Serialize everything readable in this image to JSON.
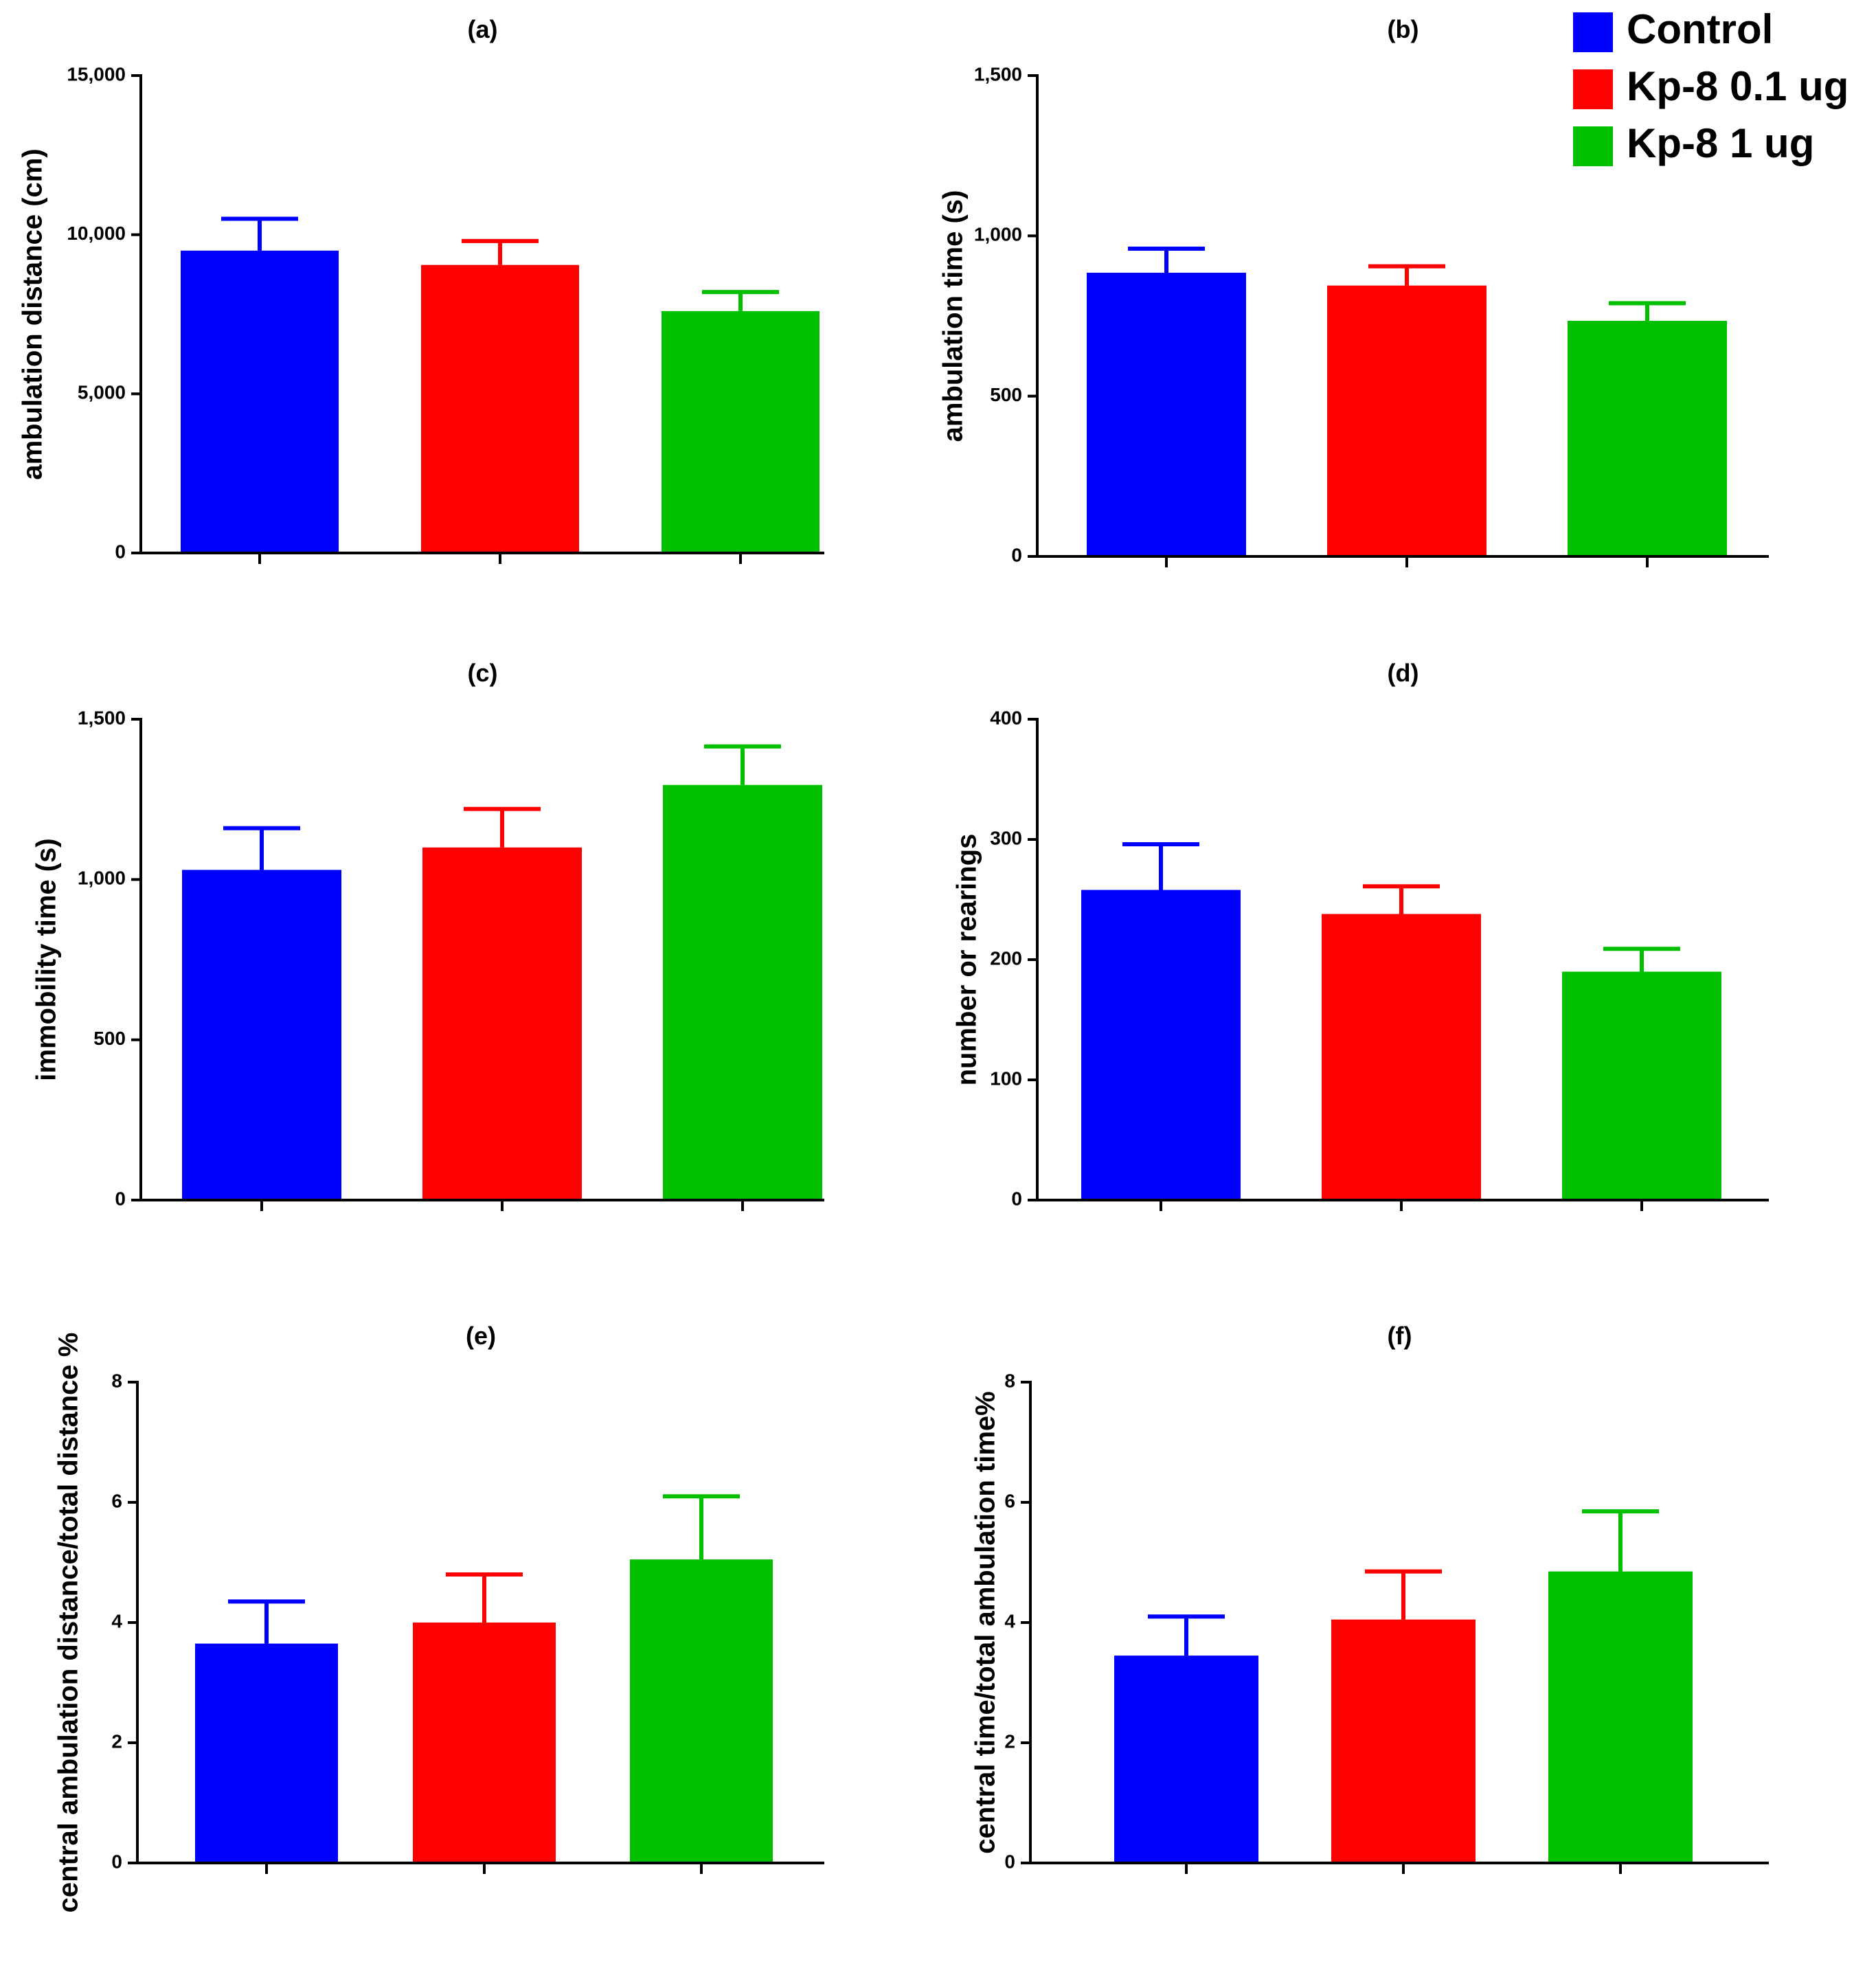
{
  "legend": {
    "items": [
      {
        "name": "Control",
        "color": "#0000ff"
      },
      {
        "name": "Kp-8 0.1 ug",
        "color": "#ff0000"
      },
      {
        "name": "Kp-8 1 ug",
        "color": "#00c000"
      }
    ]
  },
  "chart_data": [
    {
      "id": "a",
      "type": "bar",
      "title": "(a)",
      "ylabel": "ambulation distance (cm)",
      "ylim": [
        0,
        15000
      ],
      "yticks": [
        0,
        5000,
        10000,
        15000
      ],
      "yticklabels": [
        "0",
        "5,000",
        "10,000",
        "15,000"
      ],
      "categories": [
        "Control",
        "Kp-8 0.1 ug",
        "Kp-8 1 ug"
      ],
      "values": [
        9500,
        9050,
        7600
      ],
      "errors": [
        1000,
        750,
        600
      ]
    },
    {
      "id": "b",
      "type": "bar",
      "title": "(b)",
      "ylabel": "ambulation time (s)",
      "ylim": [
        0,
        1500
      ],
      "yticks": [
        0,
        500,
        1000,
        1500
      ],
      "yticklabels": [
        "0",
        "500",
        "1,000",
        "1,500"
      ],
      "categories": [
        "Control",
        "Kp-8 0.1 ug",
        "Kp-8 1 ug"
      ],
      "values": [
        885,
        845,
        735
      ],
      "errors": [
        75,
        60,
        55
      ]
    },
    {
      "id": "c",
      "type": "bar",
      "title": "(c)",
      "ylabel": "immobility time (s)",
      "ylim": [
        0,
        1500
      ],
      "yticks": [
        0,
        500,
        1000,
        1500
      ],
      "yticklabels": [
        "0",
        "500",
        "1,000",
        "1,500"
      ],
      "categories": [
        "Control",
        "Kp-8 0.1 ug",
        "Kp-8 1 ug"
      ],
      "values": [
        1030,
        1100,
        1295
      ],
      "errors": [
        130,
        120,
        120
      ]
    },
    {
      "id": "d",
      "type": "bar",
      "title": "(d)",
      "ylabel": "number or rearings",
      "ylim": [
        0,
        400
      ],
      "yticks": [
        0,
        100,
        200,
        300,
        400
      ],
      "yticklabels": [
        "0",
        "100",
        "200",
        "300",
        "400"
      ],
      "categories": [
        "Control",
        "Kp-8 0.1 ug",
        "Kp-8 1 ug"
      ],
      "values": [
        258,
        238,
        190
      ],
      "errors": [
        38,
        23,
        19
      ]
    },
    {
      "id": "e",
      "type": "bar",
      "title": "(e)",
      "ylabel": "central ambulation distance/total distance %",
      "ylim": [
        0,
        8
      ],
      "yticks": [
        0,
        2,
        4,
        6,
        8
      ],
      "yticklabels": [
        "0",
        "2",
        "4",
        "6",
        "8"
      ],
      "categories": [
        "Control",
        "Kp-8 0.1 ug",
        "Kp-8 1 ug"
      ],
      "values": [
        3.65,
        4.0,
        5.05
      ],
      "errors": [
        0.7,
        0.8,
        1.05
      ]
    },
    {
      "id": "f",
      "type": "bar",
      "title": "(f)",
      "ylabel": "central time/total ambulation time%",
      "ylim": [
        0,
        8
      ],
      "yticks": [
        0,
        2,
        4,
        6,
        8
      ],
      "yticklabels": [
        "0",
        "2",
        "4",
        "6",
        "8"
      ],
      "categories": [
        "Control",
        "Kp-8 0.1 ug",
        "Kp-8 1 ug"
      ],
      "values": [
        3.45,
        4.05,
        4.85
      ],
      "errors": [
        0.65,
        0.8,
        1.0
      ]
    }
  ]
}
